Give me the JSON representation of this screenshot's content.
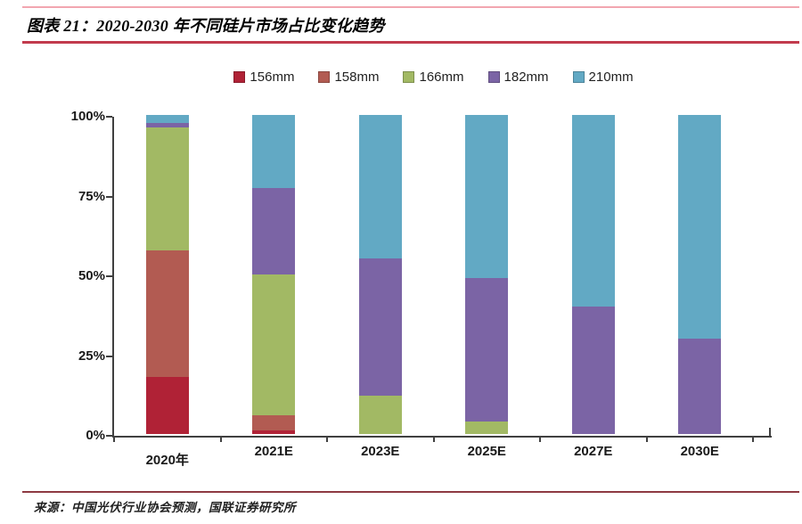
{
  "header": {
    "title": "图表 21：2020-2030 年不同硅片市场占比变化趋势"
  },
  "footer": {
    "source": "来源：中国光伏行业协会预测，国联证券研究所"
  },
  "colors": {
    "rule_top": "#F2A6B0",
    "rule_title": "#C23B4D",
    "rule_bottom": "#8E3A42",
    "axis": "#404040"
  },
  "chart_data": {
    "type": "bar",
    "stacked": true,
    "title": "图表 21：2020-2030 年不同硅片市场占比变化趋势",
    "categories": [
      "2020年",
      "2021E",
      "2023E",
      "2025E",
      "2027E",
      "2030E"
    ],
    "series": [
      {
        "name": "156mm",
        "color": "#B02236",
        "values": [
          18,
          1,
          0,
          0,
          0,
          0
        ]
      },
      {
        "name": "158mm",
        "color": "#B25B52",
        "values": [
          39.5,
          5,
          0,
          0,
          0,
          0
        ]
      },
      {
        "name": "166mm",
        "color": "#A2B964",
        "values": [
          38.5,
          44,
          12,
          4,
          0,
          0
        ]
      },
      {
        "name": "182mm",
        "color": "#7B64A5",
        "values": [
          1.5,
          27,
          43,
          45,
          40,
          30
        ]
      },
      {
        "name": "210mm",
        "color": "#62A9C4",
        "values": [
          2.5,
          23,
          45,
          51,
          60,
          70
        ]
      }
    ],
    "unit": "%",
    "ylim": [
      0,
      100
    ],
    "y_tick_values": [
      100,
      75,
      50,
      25,
      0
    ],
    "y_tick_labels": [
      "100%",
      "75%",
      "50%",
      "25%",
      "0%"
    ],
    "legend_position": "top",
    "grid": false
  }
}
